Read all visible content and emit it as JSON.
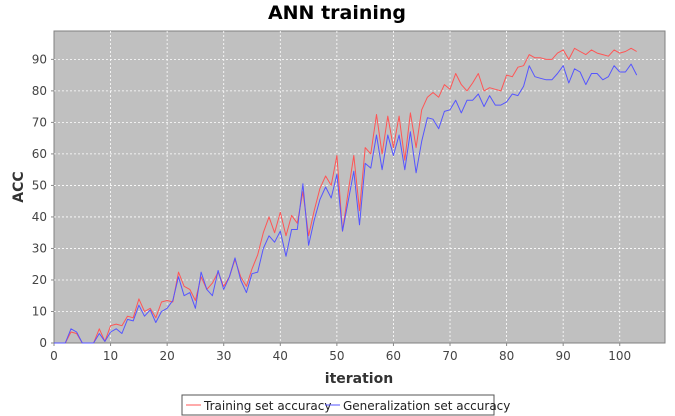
{
  "chart_data": {
    "type": "line",
    "title": "ANN training",
    "xlabel": "iteration",
    "ylabel": "ACC",
    "xlim": [
      0,
      108
    ],
    "ylim": [
      0,
      99
    ],
    "x_ticks": [
      0,
      10,
      20,
      30,
      40,
      50,
      60,
      70,
      80,
      90,
      100
    ],
    "y_ticks": [
      0,
      10,
      20,
      30,
      40,
      50,
      60,
      70,
      80,
      90
    ],
    "grid": true,
    "legend_position": "bottom",
    "background_color": "#c0c0c0",
    "series": [
      {
        "name": "Training set accuracy",
        "color": "#ff5555",
        "x": [
          0,
          1,
          2,
          3,
          4,
          5,
          6,
          7,
          8,
          9,
          10,
          11,
          12,
          13,
          14,
          15,
          16,
          17,
          18,
          19,
          20,
          21,
          22,
          23,
          24,
          25,
          26,
          27,
          28,
          29,
          30,
          31,
          32,
          33,
          34,
          35,
          36,
          37,
          38,
          39,
          40,
          41,
          42,
          43,
          44,
          45,
          46,
          47,
          48,
          49,
          50,
          51,
          52,
          53,
          54,
          55,
          56,
          57,
          58,
          59,
          60,
          61,
          62,
          63,
          64,
          65,
          66,
          67,
          68,
          69,
          70,
          71,
          72,
          73,
          74,
          75,
          76,
          77,
          78,
          79,
          80,
          81,
          82,
          83,
          84,
          85,
          86,
          87,
          88,
          89,
          90,
          91,
          92,
          93,
          94,
          95,
          96,
          97,
          98,
          99,
          100,
          101,
          102,
          103
        ],
        "y": [
          0,
          0,
          0,
          3.5,
          3,
          0,
          0,
          0,
          4.5,
          0.5,
          5.5,
          6,
          5.5,
          8.5,
          8,
          14,
          10,
          11,
          8,
          13,
          13.5,
          13,
          22.5,
          18,
          17,
          13.5,
          21,
          17,
          19,
          22.5,
          18,
          21,
          26.5,
          21,
          18,
          23.5,
          28,
          35,
          40,
          35,
          41.5,
          34,
          40.5,
          38,
          48,
          34,
          42,
          49,
          53,
          50,
          59.5,
          35.5,
          48,
          59.5,
          42,
          62,
          60,
          72.5,
          60,
          72,
          62,
          72,
          58,
          73,
          62,
          74,
          78,
          79.5,
          78,
          82,
          80.5,
          85.5,
          82,
          80,
          82.5,
          85.5,
          80,
          81,
          80.5,
          80,
          85,
          84.5,
          87.5,
          88,
          91.5,
          90.5,
          90.5,
          90,
          90,
          92,
          93,
          90,
          93.5,
          92.5,
          91.5,
          93,
          92,
          91.5,
          91,
          93,
          92,
          92.5,
          93.5,
          92.5
        ]
      },
      {
        "name": "Generalization set accuracy",
        "color": "#5555ff",
        "x": [
          0,
          1,
          2,
          3,
          4,
          5,
          6,
          7,
          8,
          9,
          10,
          11,
          12,
          13,
          14,
          15,
          16,
          17,
          18,
          19,
          20,
          21,
          22,
          23,
          24,
          25,
          26,
          27,
          28,
          29,
          30,
          31,
          32,
          33,
          34,
          35,
          36,
          37,
          38,
          39,
          40,
          41,
          42,
          43,
          44,
          45,
          46,
          47,
          48,
          49,
          50,
          51,
          52,
          53,
          54,
          55,
          56,
          57,
          58,
          59,
          60,
          61,
          62,
          63,
          64,
          65,
          66,
          67,
          68,
          69,
          70,
          71,
          72,
          73,
          74,
          75,
          76,
          77,
          78,
          79,
          80,
          81,
          82,
          83,
          84,
          85,
          86,
          87,
          88,
          89,
          90,
          91,
          92,
          93,
          94,
          95,
          96,
          97,
          98,
          99,
          100,
          101,
          102,
          103
        ],
        "y": [
          0,
          0,
          0,
          4.5,
          3.5,
          0,
          0,
          0,
          3,
          0.5,
          3.5,
          4.5,
          3,
          7.5,
          7,
          12,
          8.5,
          10.5,
          6.5,
          10,
          11,
          13.5,
          21,
          15,
          16,
          11,
          22.5,
          17,
          15,
          23,
          17,
          21,
          27,
          20,
          16,
          22,
          22.5,
          30,
          34,
          32,
          35.5,
          27.5,
          36,
          36,
          50.5,
          31,
          39,
          45.5,
          49.5,
          46,
          53.5,
          35.5,
          45,
          54.5,
          37.5,
          57,
          55.5,
          66,
          55,
          66,
          59.5,
          66,
          55,
          67,
          54,
          64,
          71.5,
          71,
          68,
          73.5,
          74,
          77,
          73,
          77,
          77,
          79,
          75,
          78.5,
          75.5,
          75.5,
          76.5,
          79,
          78.5,
          81.5,
          88,
          84.5,
          84,
          83.5,
          83.5,
          85.5,
          88,
          82.5,
          87,
          86,
          82,
          85.5,
          85.5,
          83.5,
          84.5,
          88,
          86,
          86,
          88.5,
          85
        ]
      }
    ]
  }
}
